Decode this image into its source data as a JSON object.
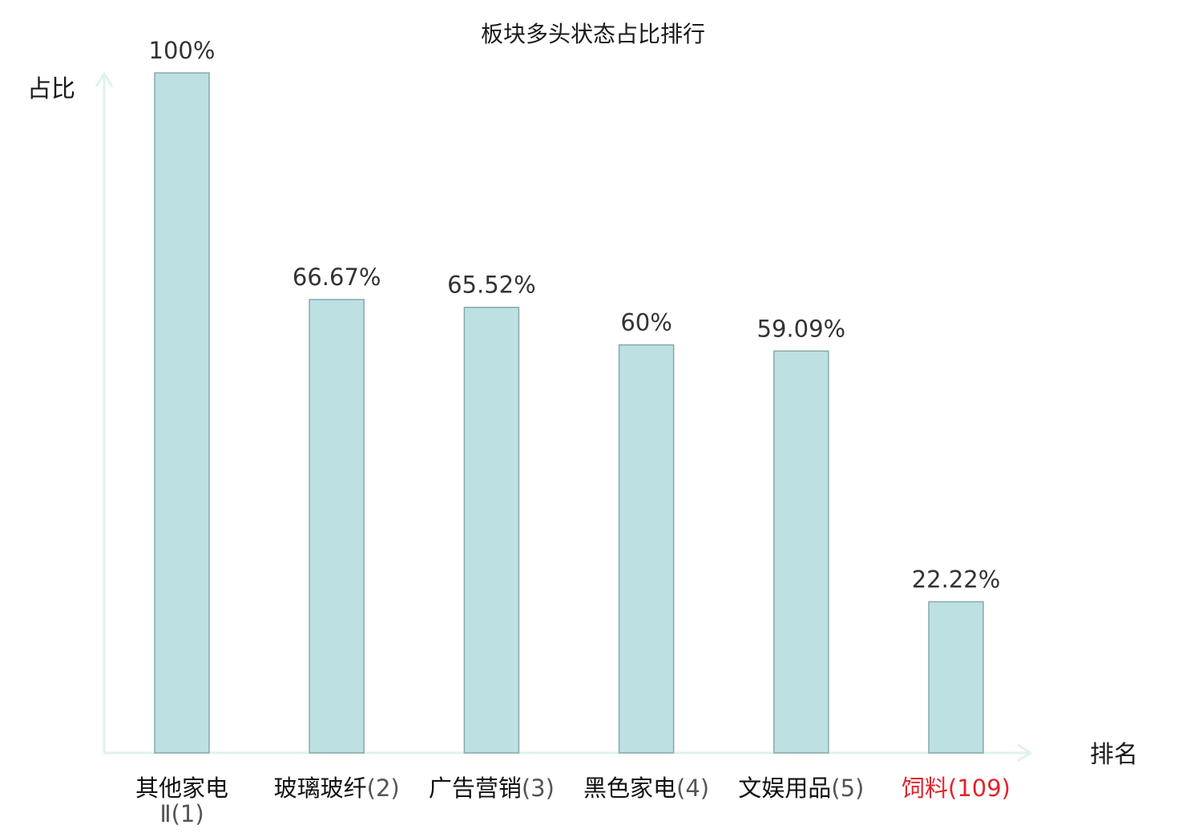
{
  "chart_data": {
    "type": "bar",
    "title": "板块多头状态占比排行",
    "ylabel": "占比",
    "xlabel": "排名",
    "ylim": [
      0,
      100
    ],
    "grid": false,
    "categories": [
      {
        "name": "其他家电Ⅱ",
        "rank": "(1)",
        "highlight": false
      },
      {
        "name": "玻璃玻纤",
        "rank": "(2)",
        "highlight": false
      },
      {
        "name": "广告营销",
        "rank": "(3)",
        "highlight": false
      },
      {
        "name": "黑色家电",
        "rank": "(4)",
        "highlight": false
      },
      {
        "name": "文娱用品",
        "rank": "(5)",
        "highlight": false
      },
      {
        "name": "饲料",
        "rank": "(109)",
        "highlight": true
      }
    ],
    "values": [
      100,
      66.67,
      65.52,
      60,
      59.09,
      22.22
    ],
    "value_labels": [
      "100%",
      "66.67%",
      "65.52%",
      "60%",
      "59.09%",
      "22.22%"
    ],
    "colors": {
      "bar_fill": "#bde1e3",
      "bar_stroke": "#86a9ab",
      "axis": "#dff2ef",
      "highlight": "#e0242b"
    }
  }
}
